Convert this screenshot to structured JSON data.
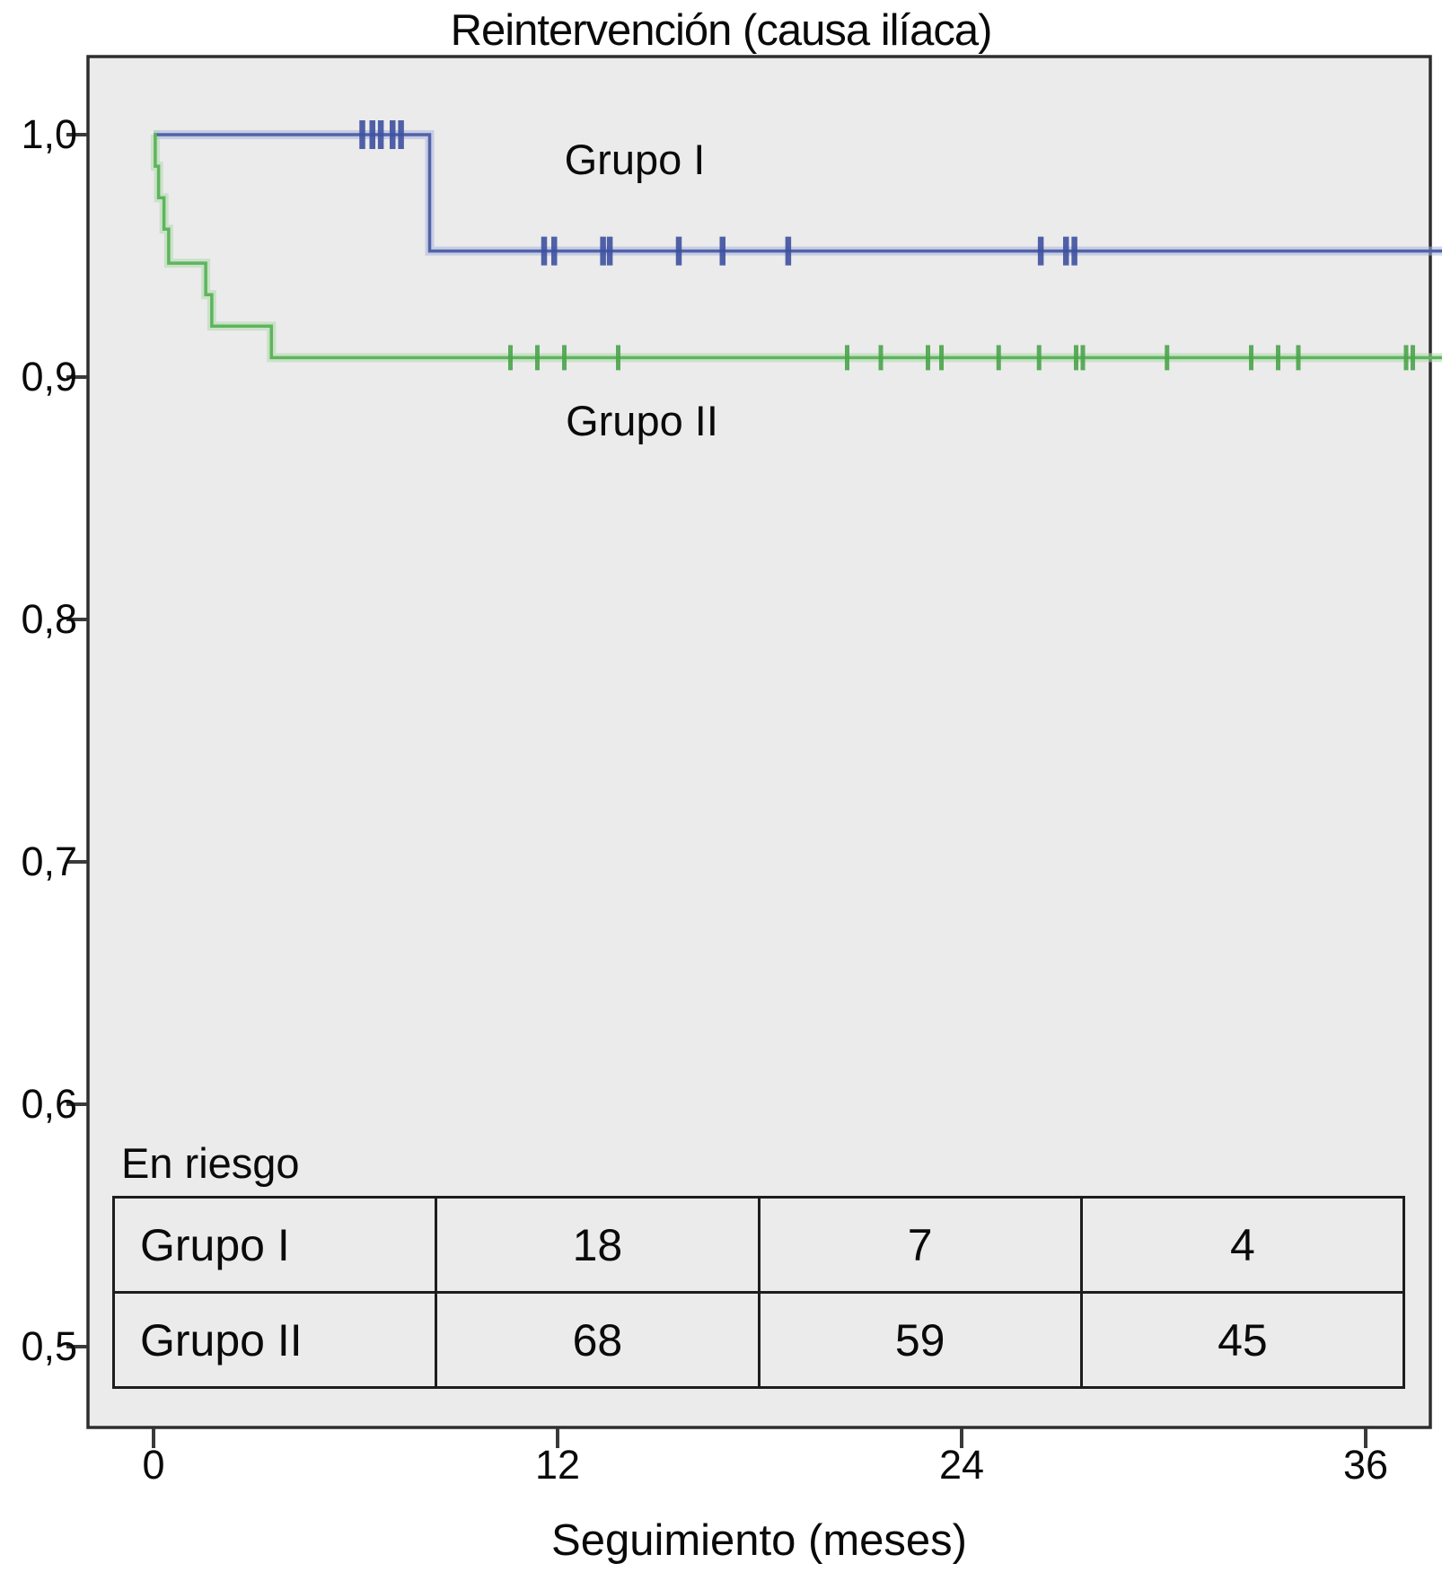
{
  "title": "Reintervención (causa ilíaca)",
  "curve_labels": {
    "group1": "Grupo I",
    "group2": "Grupo II"
  },
  "x_axis": {
    "label": "Seguimiento (meses)",
    "tick_labels": [
      "0",
      "12",
      "24",
      "36"
    ]
  },
  "y_axis": {
    "tick_labels": [
      "1,0",
      "0,9",
      "0,8",
      "0,7",
      "0,6",
      "0,5"
    ]
  },
  "risk_table": {
    "caption": "En riesgo",
    "rows": [
      {
        "label": "Grupo I",
        "values": [
          "18",
          "7",
          "4"
        ]
      },
      {
        "label": "Grupo II",
        "values": [
          "68",
          "59",
          "45"
        ]
      }
    ]
  },
  "colors": {
    "plot_background": "#ebebeb",
    "frame_border": "#2e2e2e",
    "tick_mark": "#3a3a3a",
    "group1_line": "#5163a8",
    "group1_halo": "#aab5dd",
    "group1_censor": "#3e51a0",
    "group2_line": "#5db55d",
    "group2_halo": "#aed8ab",
    "group2_censor": "#4aa44a"
  },
  "chart_data": {
    "type": "line",
    "subtype": "kaplan-meier-step",
    "title": "Reintervención (causa ilíaca)",
    "xlabel": "Seguimiento (meses)",
    "ylabel": "",
    "xlim": [
      0,
      38.3
    ],
    "ylim": [
      0.5,
      1.0
    ],
    "x_ticks": [
      0,
      12,
      24,
      36
    ],
    "y_ticks": [
      1.0,
      0.9,
      0.8,
      0.7,
      0.6,
      0.5
    ],
    "grid": false,
    "legend_position": "inline-labels",
    "series": [
      {
        "name": "Grupo I",
        "start_value": 1.0,
        "steps": [
          {
            "t": 8.2,
            "s": 0.952
          }
        ],
        "end_t": 38.3,
        "censor_times": [
          6.2,
          6.5,
          6.75,
          7.1,
          7.35,
          11.6,
          11.9,
          13.35,
          13.55,
          15.6,
          16.9,
          18.85,
          26.35,
          27.1,
          27.35
        ]
      },
      {
        "name": "Grupo II",
        "start_value": 1.0,
        "steps": [
          {
            "t": 0.05,
            "s": 0.987
          },
          {
            "t": 0.15,
            "s": 0.974
          },
          {
            "t": 0.31,
            "s": 0.961
          },
          {
            "t": 0.45,
            "s": 0.947
          },
          {
            "t": 1.55,
            "s": 0.934
          },
          {
            "t": 1.73,
            "s": 0.921
          },
          {
            "t": 3.5,
            "s": 0.908
          }
        ],
        "end_t": 38.3,
        "censor_times": [
          10.6,
          11.4,
          12.2,
          13.8,
          20.6,
          21.6,
          23.0,
          23.4,
          25.1,
          26.3,
          27.4,
          27.6,
          30.1,
          32.6,
          33.4,
          34.0,
          37.2,
          37.4
        ]
      }
    ],
    "risk_table": {
      "caption": "En riesgo",
      "times": [
        12,
        24,
        36
      ],
      "rows": [
        {
          "name": "Grupo I",
          "at_risk": [
            18,
            7,
            4
          ]
        },
        {
          "name": "Grupo II",
          "at_risk": [
            68,
            59,
            45
          ]
        }
      ]
    }
  }
}
